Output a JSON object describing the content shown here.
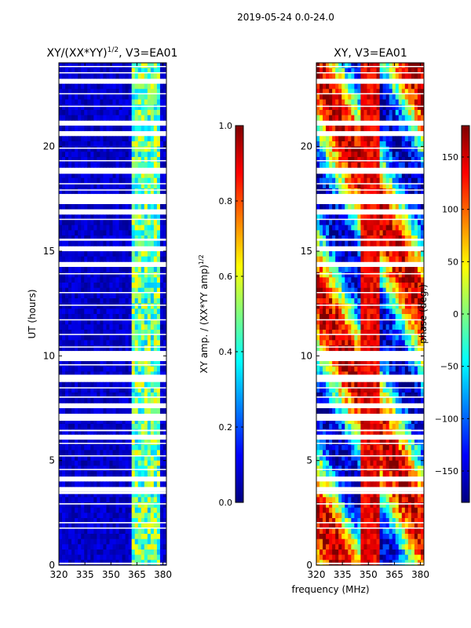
{
  "figure_title": "2019-05-24 0.0-24.0",
  "shared_xlabel": "frequency (MHz)",
  "colors": {
    "jet": [
      "#00007f",
      "#0000ff",
      "#007fff",
      "#00ffff",
      "#7fff7f",
      "#ffff00",
      "#ff7f00",
      "#ff0000",
      "#7f0000"
    ]
  },
  "chart_data": [
    {
      "type": "heatmap",
      "title": "XY/(XX*YY)",
      "title_exponent": "1/2",
      "title_suffix": ", V3=EA01",
      "xlabel": "",
      "ylabel": "UT (hours)",
      "xlim": [
        320,
        382
      ],
      "ylim": [
        0,
        24
      ],
      "xticks": [
        320,
        335,
        350,
        365,
        380
      ],
      "yticks": [
        0,
        5,
        10,
        15,
        20
      ],
      "colorbar": {
        "label": "XY amp. / (XX*YY amp)",
        "label_exponent": "1/2",
        "range": [
          0.0,
          1.0
        ],
        "ticks": [
          "0.0",
          "0.2",
          "0.4",
          "0.6",
          "0.8",
          "1.0"
        ],
        "tick_values": [
          0.0,
          0.2,
          0.4,
          0.6,
          0.8,
          1.0
        ]
      }
    },
    {
      "type": "heatmap",
      "title": "XY, V3=EA01",
      "xlabel": "frequency (MHz)",
      "ylabel": "",
      "xlim": [
        320,
        382
      ],
      "ylim": [
        0,
        24
      ],
      "xticks": [
        320,
        335,
        350,
        365,
        380
      ],
      "yticks": [
        0,
        5,
        10,
        15,
        20
      ],
      "colorbar": {
        "label": "phase (deg.)",
        "range": [
          -180,
          180
        ],
        "ticks": [
          "−150",
          "−100",
          "−50",
          "0",
          "50",
          "100",
          "150"
        ],
        "tick_values": [
          -150,
          -100,
          -50,
          0,
          50,
          100,
          150
        ]
      }
    }
  ],
  "flagged_time_ranges_hours": [
    [
      0.05,
      0.12
    ],
    [
      1.75,
      1.8
    ],
    [
      2.0,
      2.06
    ],
    [
      2.9,
      2.96
    ],
    [
      3.4,
      3.5
    ],
    [
      3.6,
      3.65
    ],
    [
      4.1,
      4.16
    ],
    [
      4.55,
      4.6
    ],
    [
      5.2,
      5.25
    ],
    [
      5.8,
      5.85
    ],
    [
      6.1,
      6.15
    ],
    [
      6.4,
      6.47
    ],
    [
      6.9,
      7.2
    ],
    [
      7.6,
      7.65
    ],
    [
      8.0,
      8.06
    ],
    [
      8.45,
      8.5
    ],
    [
      8.8,
      9.1
    ],
    [
      9.55,
      9.6
    ],
    [
      9.85,
      9.9
    ],
    [
      10.1,
      10.15
    ],
    [
      10.4,
      10.45
    ],
    [
      11.0,
      11.05
    ],
    [
      11.7,
      11.75
    ],
    [
      12.4,
      12.45
    ],
    [
      13.0,
      13.05
    ],
    [
      13.9,
      13.95
    ],
    [
      14.3,
      14.45
    ],
    [
      15.0,
      15.2
    ],
    [
      15.5,
      15.6
    ],
    [
      16.5,
      16.55
    ],
    [
      16.8,
      17.0
    ],
    [
      17.3,
      17.4
    ],
    [
      17.6,
      17.65
    ],
    [
      17.9,
      17.95
    ],
    [
      18.2,
      18.25
    ],
    [
      18.7,
      18.95
    ],
    [
      19.3,
      19.35
    ],
    [
      19.9,
      19.95
    ],
    [
      20.6,
      20.65
    ],
    [
      21.1,
      21.15
    ],
    [
      21.9,
      21.95
    ],
    [
      22.5,
      22.55
    ],
    [
      23.1,
      23.15
    ],
    [
      23.5,
      23.55
    ],
    [
      23.8,
      23.85
    ]
  ]
}
